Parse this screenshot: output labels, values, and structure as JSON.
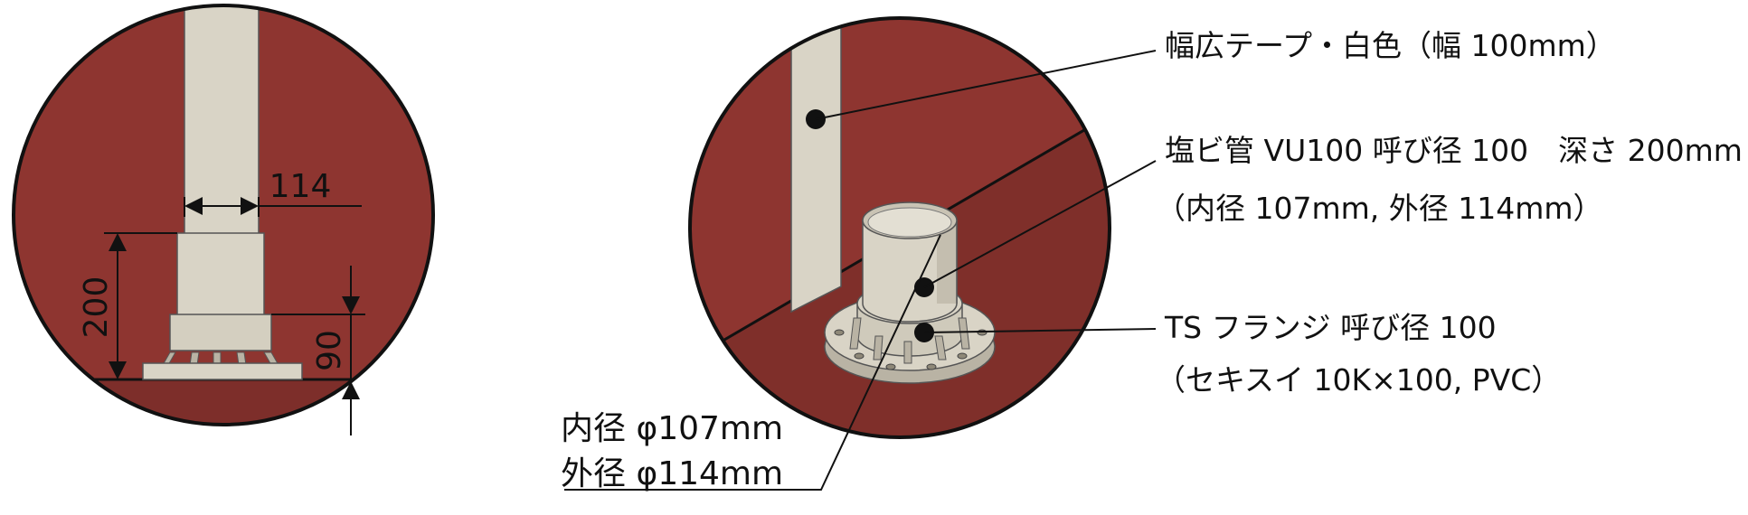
{
  "left_view": {
    "dim_width": "114",
    "dim_height": "200",
    "dim_flange_height": "90"
  },
  "callouts": {
    "tape": "幅広テープ・白色（幅 100mm）",
    "pipe_line1": "塩ビ管 VU100 呼び径 100　深さ 200mm",
    "pipe_line2": "（内径 107mm, 外径 114mm）",
    "flange_line1": "TS フランジ 呼び径 100",
    "flange_line2": "（セキスイ 10K×100, PVC）",
    "diam_inner": "内径 φ107mm",
    "diam_outer": "外径 φ114mm"
  },
  "colors": {
    "wall": "#8e3530",
    "wall_dark": "#7a2c28",
    "pipe": "#d9d4c6",
    "pipe_shade": "#b9b3a4",
    "line": "#111111"
  }
}
